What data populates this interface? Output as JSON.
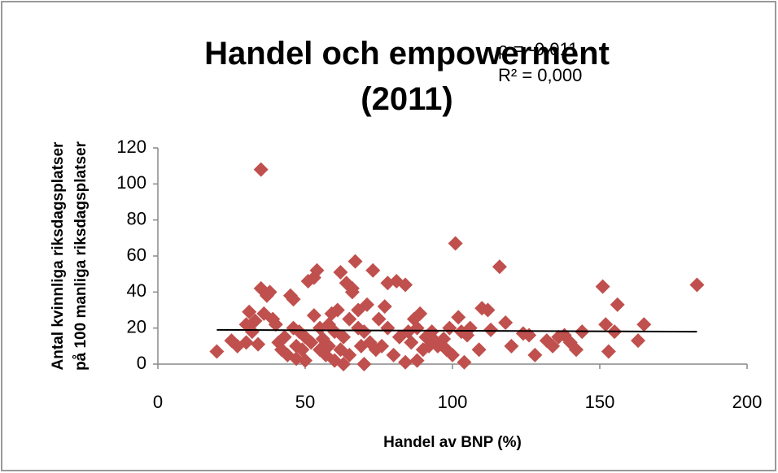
{
  "chart_data": {
    "type": "scatter",
    "title": "Handel och empowerment (2011)",
    "annotations": [
      "ρ = -0,011",
      "R² = 0,000"
    ],
    "xlabel": "Handel av BNP (%)",
    "ylabel": [
      "Antal kvinnliga riksdagsplatser",
      "på 100 manliga riksdagsplatser"
    ],
    "xlim": [
      0,
      200
    ],
    "xticks": [
      0,
      50,
      100,
      150,
      200
    ],
    "ylim": [
      0,
      120
    ],
    "yticks": [
      0,
      20,
      40,
      60,
      80,
      100,
      120
    ],
    "grid": false,
    "color": "#c0504d",
    "x": [
      20,
      25,
      27,
      30,
      30,
      31,
      32,
      33,
      34,
      35,
      35,
      36,
      37,
      38,
      39,
      40,
      41,
      42,
      43,
      44,
      45,
      46,
      46,
      47,
      47,
      48,
      49,
      50,
      50,
      51,
      52,
      53,
      53,
      54,
      55,
      55,
      56,
      57,
      58,
      58,
      59,
      60,
      60,
      61,
      62,
      62,
      63,
      63,
      64,
      65,
      65,
      66,
      66,
      67,
      68,
      68,
      69,
      70,
      70,
      71,
      72,
      73,
      74,
      75,
      76,
      77,
      78,
      78,
      80,
      81,
      82,
      84,
      84,
      85,
      86,
      87,
      88,
      88,
      89,
      90,
      91,
      92,
      93,
      94,
      95,
      97,
      98,
      99,
      100,
      101,
      102,
      103,
      104,
      105,
      106,
      109,
      110,
      112,
      113,
      116,
      118,
      120,
      124,
      126,
      128,
      132,
      134,
      136,
      138,
      140,
      142,
      144,
      151,
      152,
      153,
      155,
      156,
      163,
      165,
      183
    ],
    "values": [
      7,
      13,
      10,
      12,
      22,
      29,
      18,
      24,
      11,
      108,
      42,
      28,
      38,
      40,
      25,
      22,
      12,
      8,
      15,
      5,
      38,
      36,
      20,
      10,
      3,
      18,
      8,
      15,
      2,
      46,
      12,
      27,
      48,
      52,
      20,
      8,
      14,
      5,
      22,
      10,
      28,
      18,
      2,
      30,
      8,
      51,
      15,
      0,
      45,
      25,
      5,
      40,
      42,
      57,
      20,
      30,
      10,
      18,
      0,
      33,
      12,
      52,
      8,
      25,
      10,
      32,
      20,
      45,
      5,
      46,
      15,
      44,
      1,
      18,
      12,
      25,
      20,
      2,
      28,
      8,
      15,
      10,
      18,
      13,
      10,
      14,
      8,
      20,
      5,
      67,
      26,
      18,
      1,
      16,
      20,
      8,
      31,
      30,
      19,
      54,
      23,
      10,
      17,
      16,
      5,
      13,
      10,
      15,
      16,
      12,
      8,
      18,
      43,
      22,
      7,
      18,
      33,
      13,
      22,
      44
    ],
    "trendline": {
      "x": [
        20,
        183
      ],
      "y": [
        19,
        18
      ],
      "color": "#000000"
    }
  }
}
